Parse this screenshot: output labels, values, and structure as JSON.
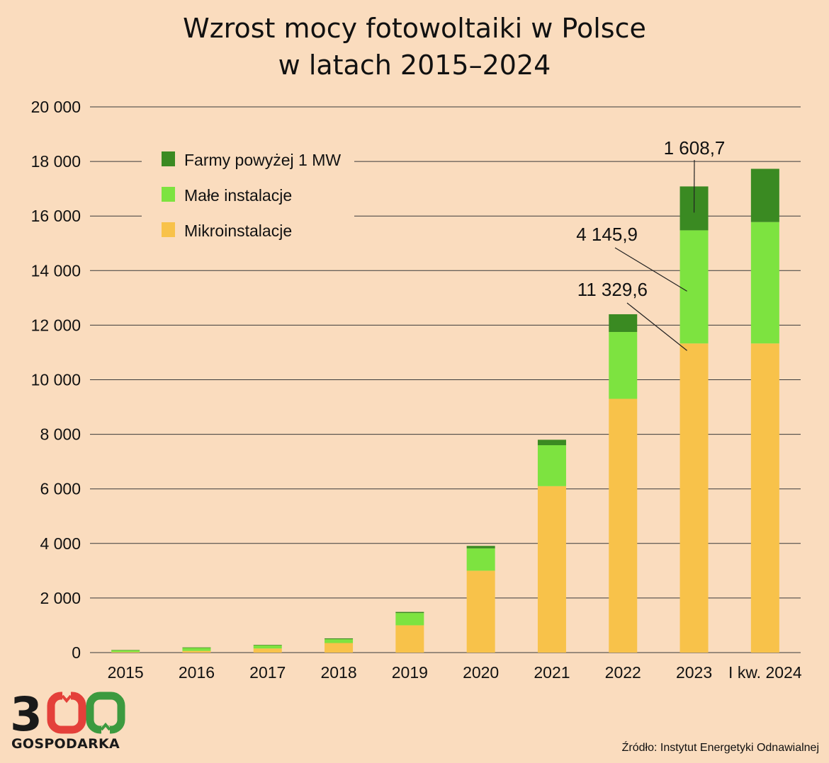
{
  "title_line1": "Wzrost mocy fotowoltaiki w Polsce",
  "title_line2": "w latach 2015–2024",
  "source": "Źródło: Instytut Energetyki Odnawialnej",
  "logo": {
    "digits": "300",
    "text": "GOSPODARKA",
    "colors": [
      "#1a1a1a",
      "#e4403a",
      "#3c9a3f"
    ]
  },
  "chart_data": {
    "type": "bar",
    "stacked": true,
    "categories": [
      "2015",
      "2016",
      "2017",
      "2018",
      "2019",
      "2020",
      "2021",
      "2022",
      "2023",
      "I kw. 2024"
    ],
    "series": [
      {
        "name": "Mikroinstalacje",
        "color": "#f8c24a",
        "values": [
          20,
          60,
          150,
          350,
          1000,
          3000,
          6100,
          9300,
          11329.6,
          11330
        ]
      },
      {
        "name": "Małe instalacje",
        "color": "#7de340",
        "values": [
          70,
          110,
          110,
          140,
          450,
          820,
          1500,
          2450,
          4145.9,
          4450
        ]
      },
      {
        "name": "Farmy powyżej 1 MW",
        "color": "#3a8a22",
        "values": [
          5,
          20,
          20,
          30,
          40,
          90,
          200,
          650,
          1608.7,
          1950
        ]
      }
    ],
    "legend_order": [
      "Farmy powyżej 1 MW",
      "Małe instalacje",
      "Mikroinstalacje"
    ],
    "legend_position": "top-left",
    "ylim": [
      0,
      20000
    ],
    "yticks": [
      0,
      2000,
      4000,
      6000,
      8000,
      10000,
      12000,
      14000,
      16000,
      18000,
      20000
    ],
    "ytick_labels": [
      "0",
      "2 000",
      "4 000",
      "6 000",
      "8 000",
      "10 000",
      "12 000",
      "14 000",
      "16 000",
      "18 000",
      "20 000"
    ],
    "grid": "horizontal",
    "annotations": [
      {
        "text": "1 608,7",
        "category": "2023",
        "series": "Farmy powyżej 1 MW"
      },
      {
        "text": "4 145,9",
        "category": "2023",
        "series": "Małe instalacje"
      },
      {
        "text": "11 329,6",
        "category": "2023",
        "series": "Mikroinstalacje"
      }
    ]
  }
}
